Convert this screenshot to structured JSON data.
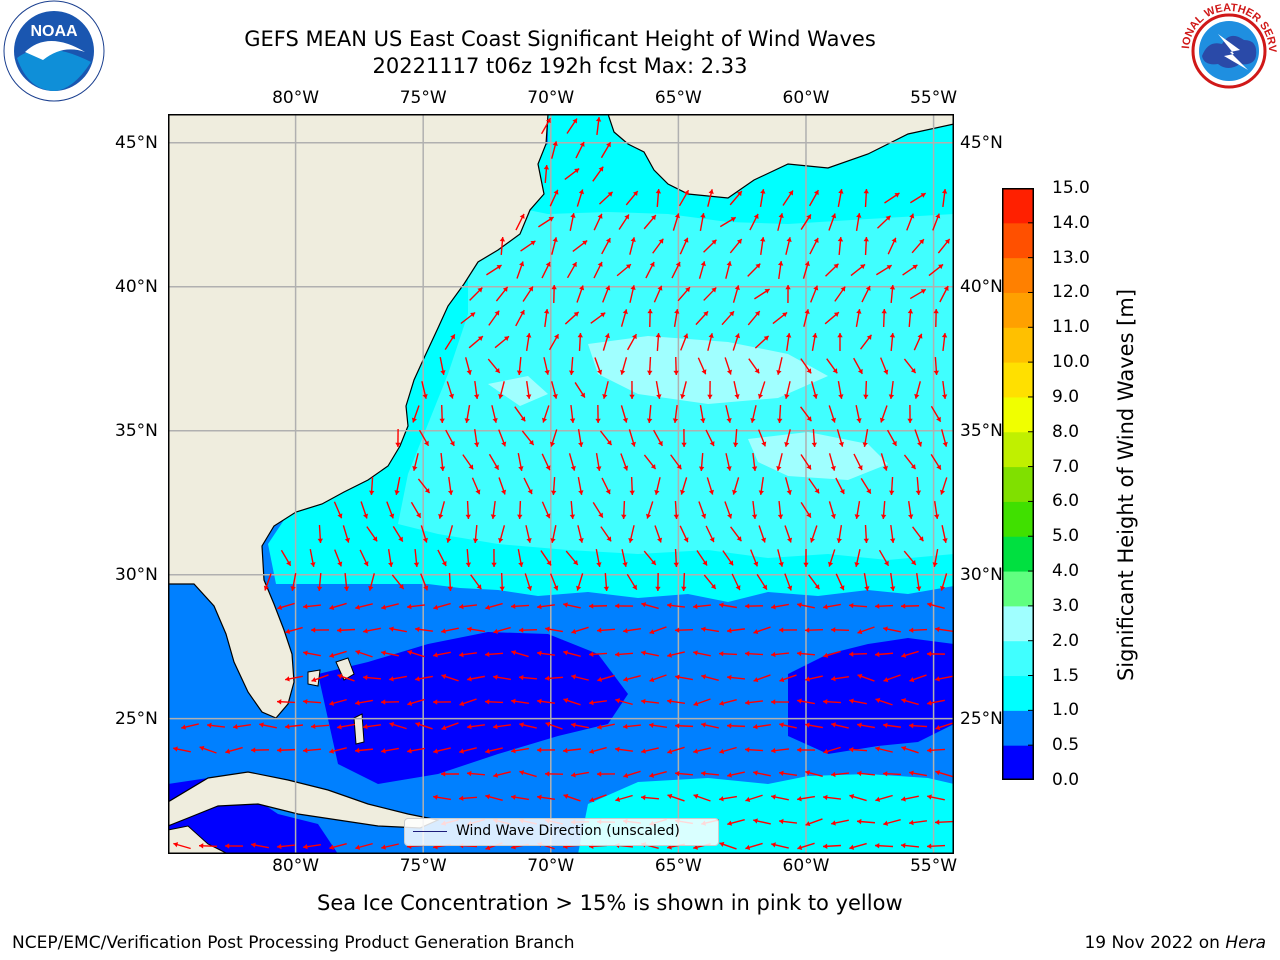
{
  "header": {
    "title_line1": "GEFS MEAN US East Coast Significant Height of Wind Waves",
    "title_line2": "20221117 t06z 192h fcst   Max: 2.33"
  },
  "logos": {
    "noaa": "NOAA",
    "nws": "NATIONAL WEATHER SERVICE"
  },
  "map": {
    "lon_ticks": [
      "80°W",
      "75°W",
      "70°W",
      "65°W",
      "60°W",
      "55°W"
    ],
    "lat_ticks": [
      "45°N",
      "40°N",
      "35°N",
      "30°N",
      "25°N"
    ],
    "lon_range": [
      -85,
      -54.2
    ],
    "lat_range": [
      20.3,
      46
    ],
    "legend_label": "Wind Wave Direction (unscaled)",
    "land_color": "#efedde",
    "grid_color": "#b0b0b0",
    "arrow_color": "#ff0000",
    "max_value": 2.33
  },
  "colorbar": {
    "title": "Significant Height of Wind Waves [m]",
    "tick_labels": [
      "0.0",
      "0.5",
      "1.0",
      "1.5",
      "2.0",
      "3.0",
      "4.0",
      "5.0",
      "6.0",
      "7.0",
      "8.0",
      "9.0",
      "10.0",
      "11.0",
      "12.0",
      "13.0",
      "14.0",
      "15.0"
    ],
    "colors": [
      "#0000ff",
      "#0080ff",
      "#00ffff",
      "#40ffff",
      "#a0ffff",
      "#60ff80",
      "#00e040",
      "#40e000",
      "#80e000",
      "#c0f000",
      "#f0ff00",
      "#ffe000",
      "#ffc000",
      "#ffa000",
      "#ff8000",
      "#ff5000",
      "#ff2000"
    ]
  },
  "footer": {
    "sea_ice_note": "Sea Ice Concentration > 15% is shown in pink to yellow",
    "branch": "NCEP/EMC/Verification Post Processing Product Generation Branch",
    "date": "19 Nov 2022 on ",
    "machine": "Hera"
  }
}
